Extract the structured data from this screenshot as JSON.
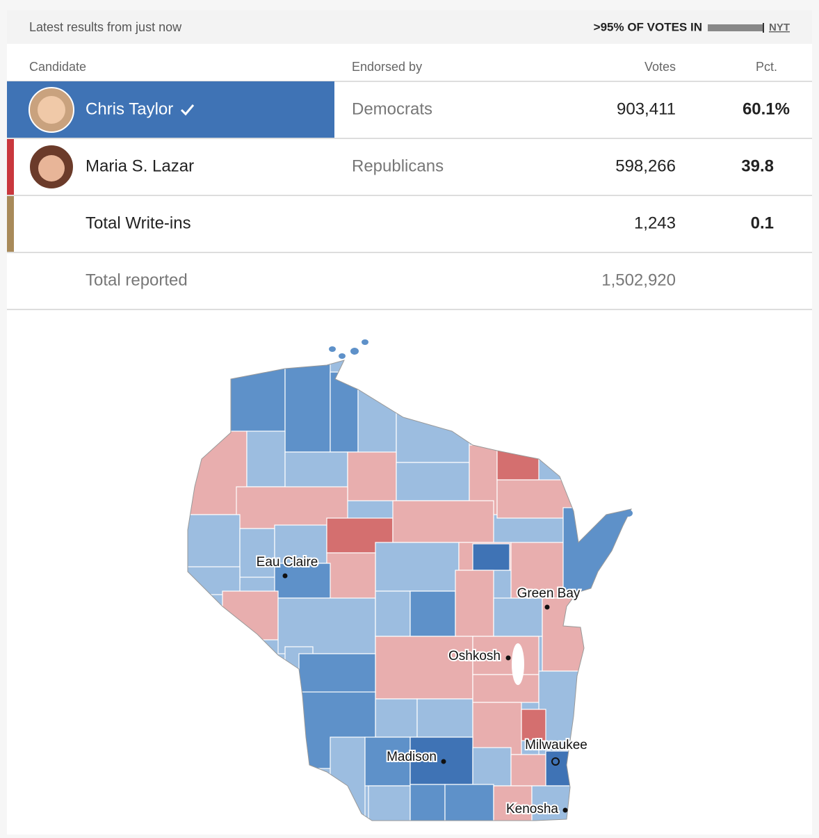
{
  "header": {
    "status": "Latest results from just now",
    "reporting": ">95% OF VOTES IN",
    "source": "NYT"
  },
  "table": {
    "columns": [
      "Candidate",
      "Endorsed by",
      "Votes",
      "Pct."
    ],
    "rows": [
      {
        "candidate": "Chris Taylor",
        "party": "Democrats",
        "votes": "903,411",
        "pct": "60.1%"
      },
      {
        "candidate": "Maria S. Lazar",
        "party": "Republicans",
        "votes": "598,266",
        "pct": "39.8"
      },
      {
        "candidate": "Total Write-ins",
        "votes": "1,243",
        "pct": "0.1"
      }
    ],
    "total": {
      "label": "Total reported",
      "votes": "1,502,920"
    }
  },
  "map": {
    "cities": [
      "Eau Claire",
      "Green Bay",
      "Oshkosh",
      "Madison",
      "Milwaukee",
      "Kenosha"
    ]
  }
}
